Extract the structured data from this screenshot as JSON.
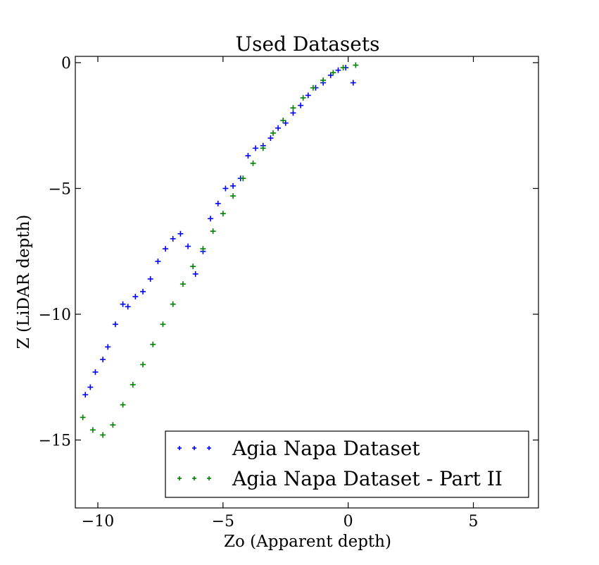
{
  "chart_data": {
    "type": "scatter",
    "title": "Used Datasets",
    "xlabel": "Zo (Apparent depth)",
    "ylabel": "Z (LiDAR depth)",
    "xlim": [
      -10.9,
      7.6
    ],
    "ylim": [
      -17.7,
      0.25
    ],
    "xticks": [
      -10,
      -5,
      0,
      5
    ],
    "xtick_labels": [
      "−10",
      "−5",
      "0",
      "5"
    ],
    "yticks": [
      0,
      -5,
      -10,
      -15
    ],
    "ytick_labels": [
      "0",
      "−5",
      "−10",
      "−15"
    ],
    "grid": false,
    "legend_position": "lower right",
    "marker": "+",
    "series": [
      {
        "name": "Agia Napa Dataset",
        "color": "#0000ff",
        "x": [
          -10.5,
          -10.3,
          -10.1,
          -9.8,
          -9.6,
          -9.3,
          -9.0,
          -8.8,
          -8.5,
          -8.2,
          -7.9,
          -7.6,
          -7.3,
          -7.0,
          -6.7,
          -6.4,
          -6.1,
          -5.8,
          -5.5,
          -5.2,
          -4.9,
          -4.6,
          -4.3,
          -4.0,
          -3.7,
          -3.4,
          -3.1,
          -2.8,
          -2.5,
          -2.2,
          -1.9,
          -1.6,
          -1.3,
          -1.0,
          -0.7,
          -0.4,
          -0.1,
          0.2
        ],
        "y": [
          -13.2,
          -12.9,
          -12.3,
          -11.8,
          -11.3,
          -10.4,
          -9.6,
          -9.7,
          -9.3,
          -9.1,
          -8.6,
          -7.9,
          -7.4,
          -7.0,
          -6.8,
          -7.3,
          -8.4,
          -7.5,
          -6.2,
          -5.6,
          -5.0,
          -4.9,
          -4.6,
          -3.7,
          -3.4,
          -3.3,
          -3.0,
          -2.6,
          -2.4,
          -2.0,
          -1.7,
          -1.3,
          -1.0,
          -0.8,
          -0.5,
          -0.3,
          -0.2,
          -0.8
        ]
      },
      {
        "name": "Agia Napa Dataset - Part II",
        "color": "#008000",
        "x": [
          -10.6,
          -10.2,
          -9.8,
          -9.4,
          -9.0,
          -8.6,
          -8.2,
          -7.8,
          -7.4,
          -7.0,
          -6.6,
          -6.2,
          -5.8,
          -5.4,
          -5.0,
          -4.6,
          -4.2,
          -3.8,
          -3.4,
          -3.0,
          -2.6,
          -2.2,
          -1.8,
          -1.4,
          -1.0,
          -0.6,
          -0.2,
          0.3
        ],
        "y": [
          -14.1,
          -14.6,
          -14.8,
          -14.4,
          -13.6,
          -12.8,
          -12.0,
          -11.2,
          -10.4,
          -9.6,
          -8.8,
          -8.1,
          -7.4,
          -6.7,
          -6.0,
          -5.3,
          -4.6,
          -4.0,
          -3.4,
          -2.8,
          -2.3,
          -1.8,
          -1.4,
          -1.0,
          -0.7,
          -0.4,
          -0.2,
          -0.1
        ]
      }
    ]
  }
}
